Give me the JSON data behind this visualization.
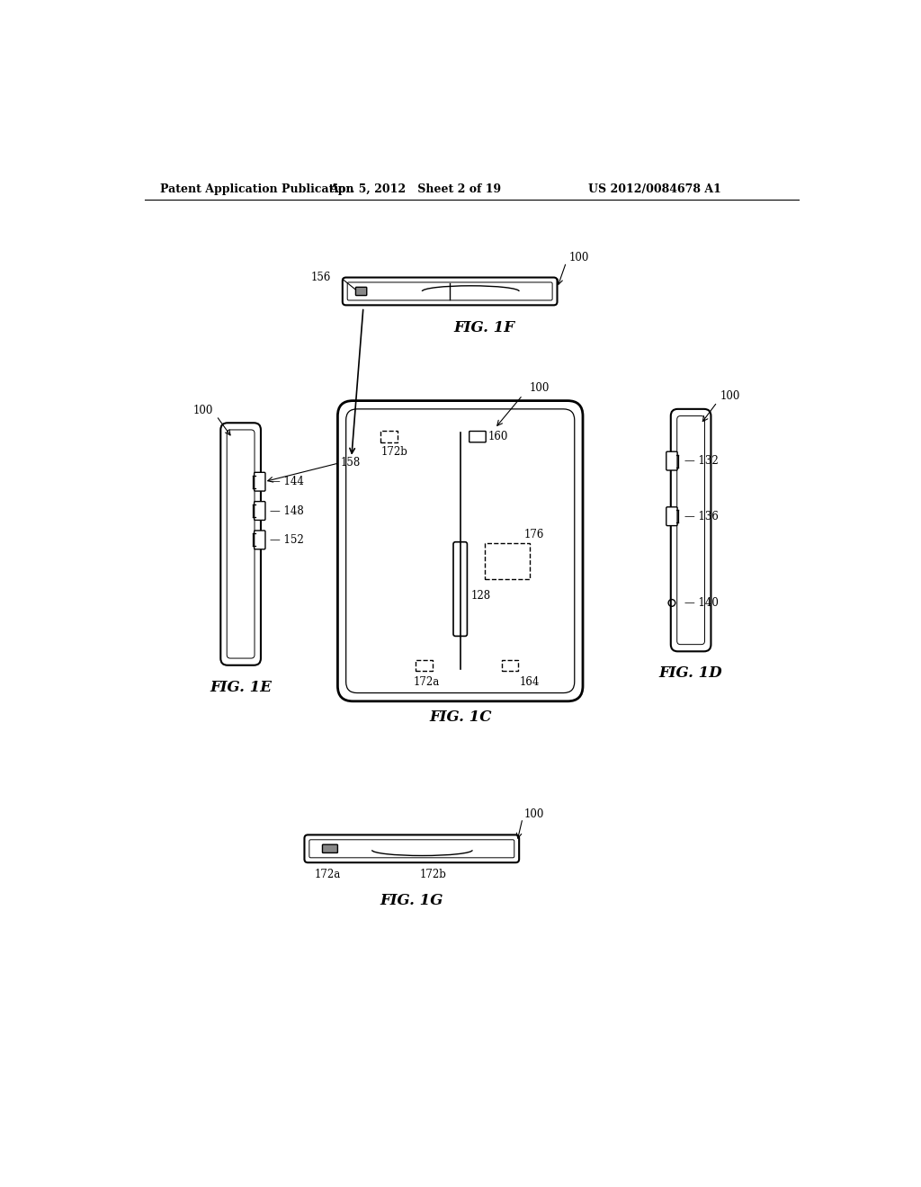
{
  "header_left": "Patent Application Publication",
  "header_center": "Apr. 5, 2012   Sheet 2 of 19",
  "header_right": "US 2012/0084678 A1",
  "fig1f_label": "FIG. 1F",
  "fig1c_label": "FIG. 1C",
  "fig1e_label": "FIG. 1E",
  "fig1d_label": "FIG. 1D",
  "fig1g_label": "FIG. 1G",
  "bg_color": "#ffffff",
  "line_color": "#000000"
}
